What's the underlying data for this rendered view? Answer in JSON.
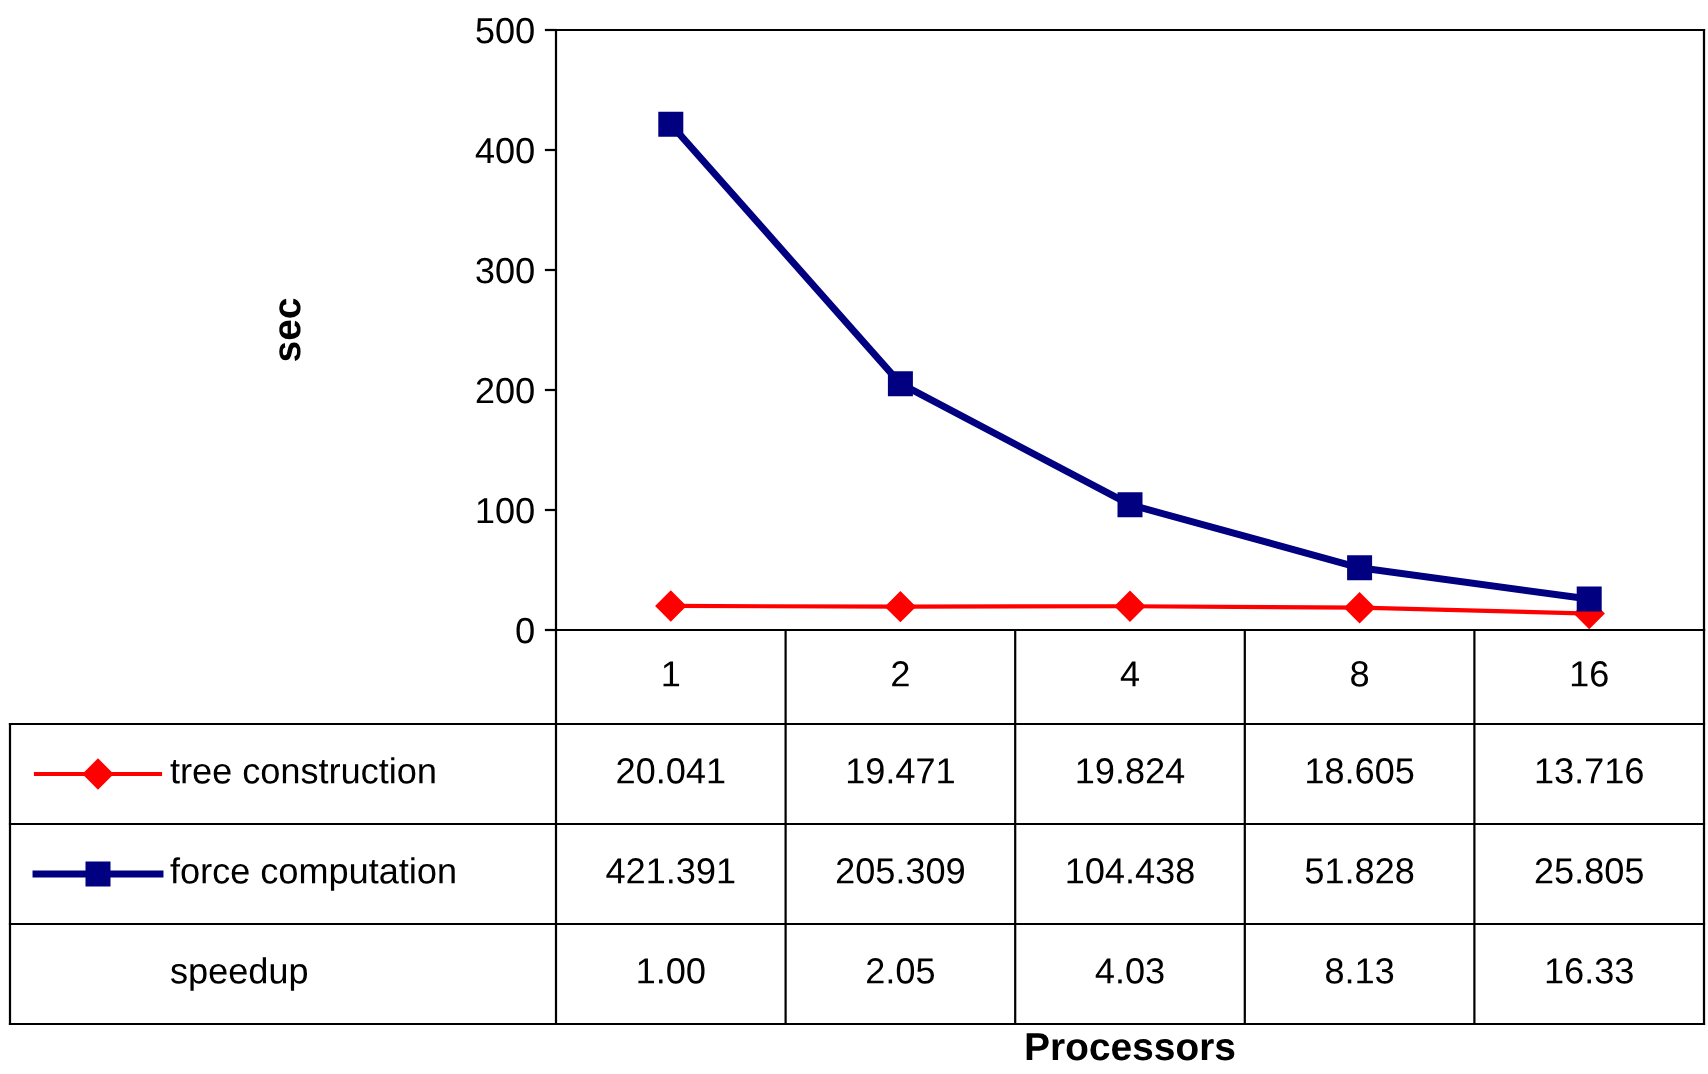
{
  "chart_data": {
    "type": "line",
    "ylabel": "sec",
    "categories": [
      "1",
      "2",
      "4",
      "8",
      "16"
    ],
    "series": [
      {
        "name": "tree construction",
        "color": "#ff0000",
        "marker": "diamond",
        "values": [
          20.041,
          19.471,
          19.824,
          18.605,
          13.716
        ]
      },
      {
        "name": "force computation",
        "color": "#000080",
        "marker": "square",
        "values": [
          421.391,
          205.309,
          104.438,
          51.828,
          25.805
        ]
      }
    ],
    "ylim": [
      0,
      500
    ],
    "yticks": [
      0,
      100,
      200,
      300,
      400,
      500
    ],
    "grid": false,
    "legend": "bottom",
    "data_labels": true,
    "annotations": [
      "Processors",
      "speedup",
      "1.00",
      "2.05",
      "4.03",
      "8.13",
      "16.33"
    ]
  }
}
